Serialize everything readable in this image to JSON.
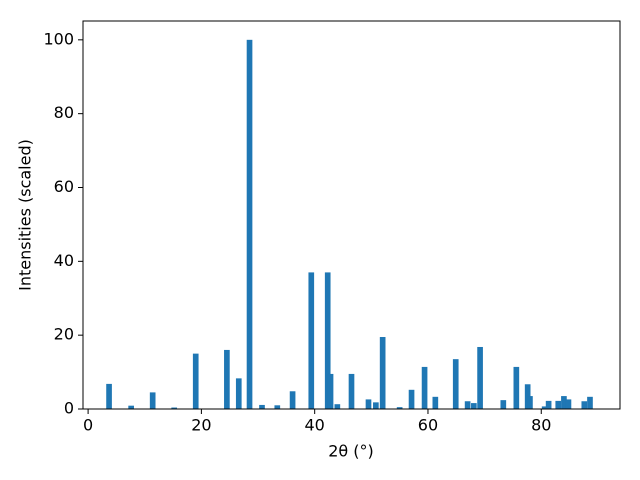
{
  "chart_data": {
    "type": "bar",
    "xlabel": "2θ (°)",
    "ylabel": "Intensities (scaled)",
    "color": "#1f77b4",
    "x": [
      3.7,
      7.6,
      11.4,
      15.2,
      19.0,
      24.5,
      26.6,
      28.5,
      30.7,
      33.4,
      36.1,
      39.4,
      42.3,
      42.8,
      44.0,
      46.5,
      49.5,
      50.8,
      52.0,
      55.0,
      57.1,
      59.4,
      61.3,
      64.9,
      67.0,
      68.1,
      69.2,
      73.3,
      75.6,
      77.6,
      78.0,
      80.6,
      81.3,
      83.0,
      84.0,
      84.8,
      87.6,
      88.6
    ],
    "values": [
      6.8,
      0.9,
      4.5,
      0.4,
      15,
      16,
      8.3,
      100,
      1.1,
      1.0,
      4.8,
      37,
      37,
      9.5,
      1.3,
      9.5,
      2.6,
      1.8,
      19.5,
      0.5,
      5.2,
      11.4,
      3.3,
      13.5,
      2.1,
      1.6,
      16.8,
      2.4,
      11.4,
      6.7,
      3.5,
      0.7,
      2.2,
      2.2,
      3.5,
      2.6,
      2.1,
      3.3
    ],
    "xlim": [
      -0.9,
      93.9
    ],
    "xticks": [
      0,
      20,
      40,
      60,
      80
    ],
    "ylim": [
      0,
      105.1
    ],
    "yticks": [
      0,
      20,
      40,
      60,
      80,
      100
    ]
  }
}
